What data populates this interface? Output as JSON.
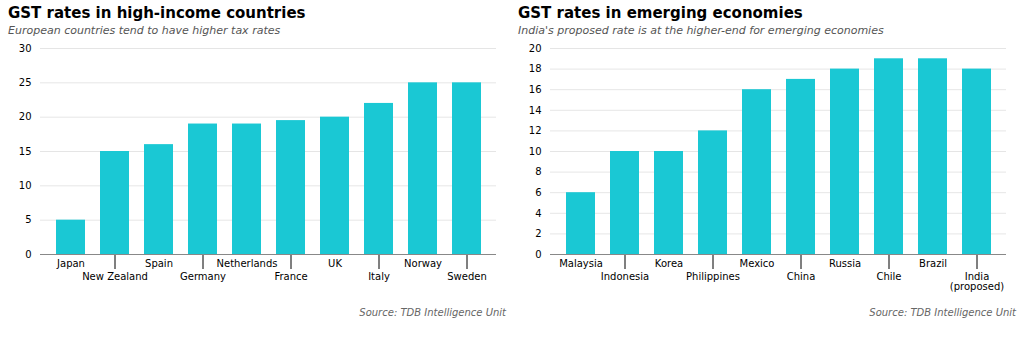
{
  "chart_data": [
    {
      "type": "bar",
      "title": "GST rates in high-income countries",
      "subtitle": "European countries tend to have higher tax rates",
      "categories": [
        "Japan",
        "New Zealand",
        "Spain",
        "Germany",
        "Netherlands",
        "France",
        "UK",
        "Italy",
        "Norway",
        "Sweden"
      ],
      "values": [
        5,
        15,
        16,
        19,
        19,
        19.5,
        20,
        22,
        25,
        25
      ],
      "color": "#1AC8D4",
      "ylim": [
        0,
        30
      ],
      "yticks": [
        0,
        5,
        10,
        15,
        20,
        25,
        30
      ],
      "grid": true,
      "annotation": "Source: TDB Intelligence Unit"
    },
    {
      "type": "bar",
      "title": "GST rates in emerging economies",
      "subtitle": "India's proposed rate is at the higher-end for emerging economies",
      "categories": [
        "Malaysia",
        "Indonesia",
        "Korea",
        "Philippines",
        "Mexico",
        "China",
        "Russia",
        "Chile",
        "Brazil",
        "India\n(proposed)"
      ],
      "values": [
        6,
        10,
        10,
        12,
        16,
        17,
        18,
        19,
        19,
        18
      ],
      "color": "#1AC8D4",
      "ylim": [
        0,
        20
      ],
      "yticks": [
        0,
        2,
        4,
        6,
        8,
        10,
        12,
        14,
        16,
        18,
        20
      ],
      "grid": true,
      "annotation": "Source: TDB Intelligence Unit"
    }
  ]
}
